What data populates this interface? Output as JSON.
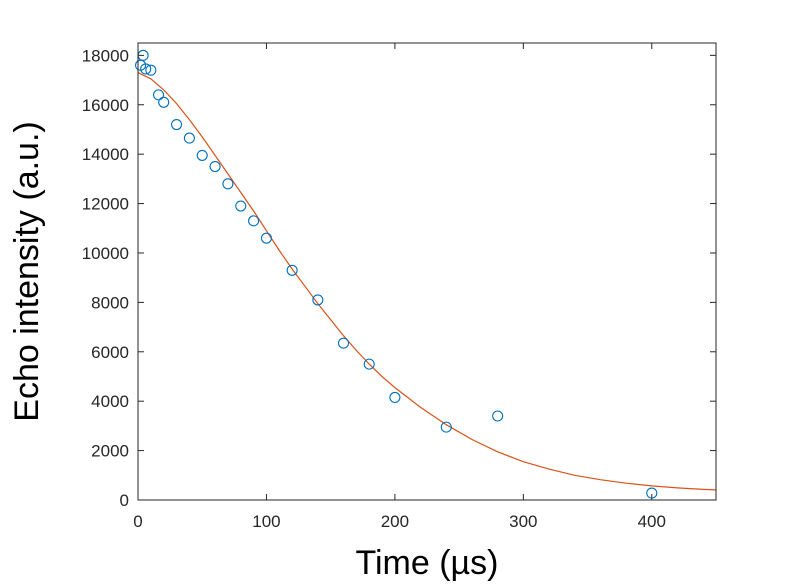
{
  "chart_data": {
    "type": "scatter",
    "xlabel": "Time (µs)",
    "ylabel": "Echo intensity (a.u.)",
    "xlim": [
      0,
      450
    ],
    "ylim": [
      0,
      18500
    ],
    "x_ticks": [
      0,
      100,
      200,
      300,
      400
    ],
    "y_ticks": [
      0,
      2000,
      4000,
      6000,
      8000,
      10000,
      12000,
      14000,
      16000,
      18000
    ],
    "box": true,
    "grid": false,
    "colors": {
      "points": "#0072BD",
      "fit": "#D95319",
      "axes": "#262626"
    },
    "series": [
      {
        "kind": "points",
        "marker": "open-circle",
        "x": [
          2,
          4,
          6,
          10,
          16,
          20,
          30,
          40,
          50,
          60,
          70,
          80,
          90,
          100,
          120,
          140,
          160,
          180,
          200,
          240,
          280,
          400
        ],
        "y": [
          17600,
          18000,
          17450,
          17400,
          16400,
          16100,
          15200,
          14650,
          13950,
          13500,
          12800,
          11900,
          11300,
          10600,
          9300,
          8100,
          6350,
          5500,
          4150,
          2950,
          3400,
          280
        ]
      },
      {
        "kind": "fit-line",
        "x": [
          0,
          10,
          20,
          30,
          40,
          50,
          60,
          70,
          80,
          90,
          100,
          110,
          120,
          130,
          140,
          150,
          160,
          170,
          180,
          190,
          200,
          220,
          240,
          260,
          280,
          300,
          320,
          340,
          360,
          380,
          400,
          420,
          440,
          450
        ],
        "y": [
          17300,
          17050,
          16600,
          16050,
          15400,
          14700,
          13950,
          13200,
          12450,
          11700,
          10900,
          10100,
          9350,
          8650,
          7950,
          7300,
          6650,
          6050,
          5500,
          5000,
          4550,
          3750,
          3050,
          2450,
          1950,
          1550,
          1250,
          1000,
          820,
          680,
          570,
          490,
          430,
          410
        ]
      }
    ]
  }
}
